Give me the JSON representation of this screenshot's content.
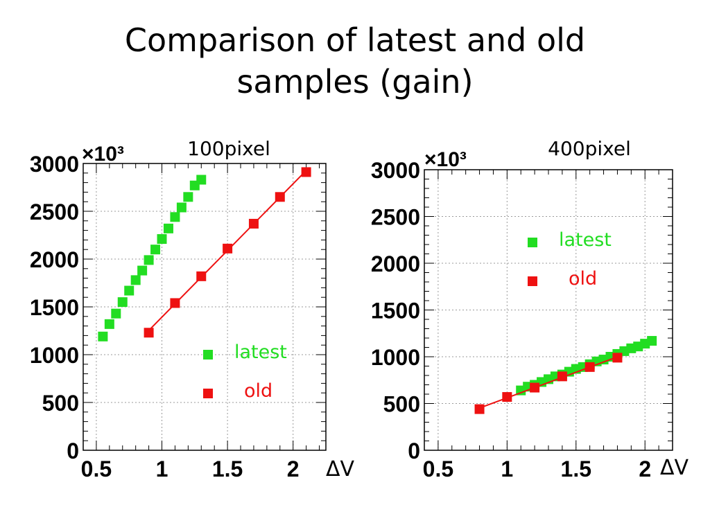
{
  "slide": {
    "title_line1": "Comparison of latest and old",
    "title_line2": "samples (gain)"
  },
  "chart_data": [
    {
      "type": "scatter",
      "title": "100pixel",
      "xlabel": "ΔV",
      "ylabel": "",
      "y_multiplier": "×10³",
      "xlim": [
        0.4,
        2.25
      ],
      "ylim": [
        0,
        3000
      ],
      "x_ticks": [
        "0.5",
        "1",
        "1.5",
        "2"
      ],
      "y_ticks": [
        "0",
        "500",
        "1000",
        "1500",
        "2000",
        "2500",
        "3000"
      ],
      "grid": true,
      "legend_position": "bottom-right",
      "series": [
        {
          "name": "latest",
          "color": "#22dd22",
          "fit_line": false,
          "x": [
            0.55,
            0.6,
            0.65,
            0.7,
            0.75,
            0.8,
            0.85,
            0.9,
            0.95,
            1.0,
            1.05,
            1.1,
            1.15,
            1.2,
            1.25,
            1.3
          ],
          "y": [
            1190,
            1320,
            1430,
            1550,
            1670,
            1780,
            1880,
            1990,
            2100,
            2210,
            2320,
            2440,
            2540,
            2650,
            2770,
            2830
          ]
        },
        {
          "name": "old",
          "color": "#ee1111",
          "fit_line": true,
          "x": [
            0.9,
            1.1,
            1.3,
            1.5,
            1.7,
            1.9,
            2.1
          ],
          "y": [
            1230,
            1540,
            1820,
            2110,
            2370,
            2650,
            2910
          ]
        }
      ]
    },
    {
      "type": "scatter",
      "title": "400pixel",
      "xlabel": "ΔV",
      "ylabel": "",
      "y_multiplier": "×10³",
      "xlim": [
        0.4,
        2.2
      ],
      "ylim": [
        0,
        3000
      ],
      "x_ticks": [
        "0.5",
        "1",
        "1.5",
        "2"
      ],
      "y_ticks": [
        "0",
        "500",
        "1000",
        "1500",
        "2000",
        "2500",
        "3000"
      ],
      "grid": true,
      "legend_position": "top-right",
      "series": [
        {
          "name": "latest",
          "color": "#22dd22",
          "fit_line": false,
          "x": [
            1.1,
            1.15,
            1.2,
            1.25,
            1.3,
            1.35,
            1.4,
            1.45,
            1.5,
            1.55,
            1.6,
            1.65,
            1.7,
            1.75,
            1.8,
            1.85,
            1.9,
            1.95,
            2.0,
            2.05
          ],
          "y": [
            640,
            680,
            700,
            730,
            760,
            790,
            810,
            840,
            870,
            890,
            920,
            950,
            970,
            1000,
            1030,
            1060,
            1090,
            1110,
            1140,
            1170
          ]
        },
        {
          "name": "old",
          "color": "#ee1111",
          "fit_line": true,
          "x": [
            0.8,
            1.0,
            1.2,
            1.4,
            1.6,
            1.8
          ],
          "y": [
            440,
            570,
            670,
            790,
            890,
            990
          ]
        }
      ]
    }
  ]
}
